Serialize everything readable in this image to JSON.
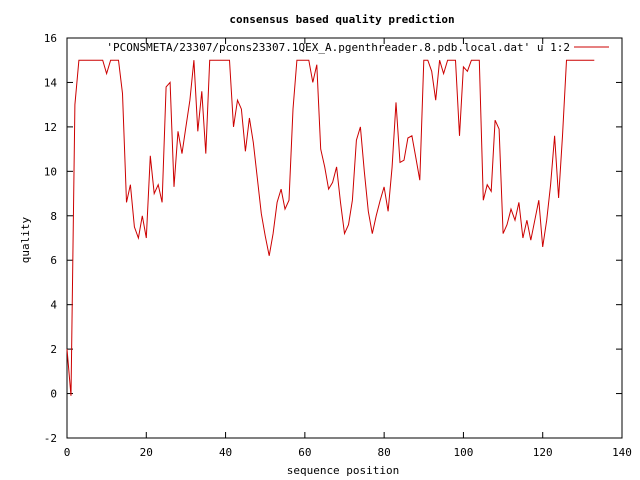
{
  "chart_data": {
    "type": "line",
    "title": "consensus based quality prediction",
    "xlabel": "sequence position",
    "ylabel": "quality",
    "xlim": [
      0,
      140
    ],
    "ylim": [
      -2,
      16
    ],
    "xticks": [
      "0",
      "20",
      "40",
      "60",
      "80",
      "100",
      "120",
      "140"
    ],
    "yticks": [
      "-2",
      "0",
      "2",
      "4",
      "6",
      "8",
      "10",
      "12",
      "14",
      "16"
    ],
    "grid": false,
    "legend_position": "top-right",
    "series": [
      {
        "name": "'PCONSMETA/23307/pcons23307.1QEX_A.pgenthreader.8.pdb.local.dat' u 1:2",
        "color": "#cc0000",
        "x": [
          0,
          1,
          2,
          3,
          4,
          5,
          6,
          7,
          8,
          9,
          10,
          11,
          12,
          13,
          14,
          15,
          16,
          17,
          18,
          19,
          20,
          21,
          22,
          23,
          24,
          25,
          26,
          27,
          28,
          29,
          30,
          31,
          32,
          33,
          34,
          35,
          36,
          37,
          38,
          39,
          40,
          41,
          42,
          43,
          44,
          45,
          46,
          47,
          48,
          49,
          50,
          51,
          52,
          53,
          54,
          55,
          56,
          57,
          58,
          59,
          60,
          61,
          62,
          63,
          64,
          65,
          66,
          67,
          68,
          69,
          70,
          71,
          72,
          73,
          74,
          75,
          76,
          77,
          78,
          79,
          80,
          81,
          82,
          83,
          84,
          85,
          86,
          87,
          88,
          89,
          90,
          91,
          92,
          93,
          94,
          95,
          96,
          97,
          98,
          99,
          100,
          101,
          102,
          103,
          104,
          105,
          106,
          107,
          108,
          109,
          110,
          111,
          112,
          113,
          114,
          115,
          116,
          117,
          118,
          119,
          120,
          121,
          122,
          123,
          124,
          125,
          126,
          127,
          128,
          129,
          130,
          131,
          132,
          133
        ],
        "y": [
          2.0,
          -0.1,
          13.0,
          15.0,
          15.0,
          15.0,
          15.0,
          15.0,
          15.0,
          15.0,
          14.4,
          15.0,
          15.0,
          15.0,
          13.5,
          8.6,
          9.4,
          7.5,
          7.0,
          8.0,
          7.0,
          10.7,
          9.0,
          9.4,
          8.6,
          13.8,
          14.0,
          9.3,
          11.8,
          10.8,
          12.0,
          13.2,
          15.0,
          11.8,
          13.6,
          10.8,
          15.0,
          15.0,
          15.0,
          15.0,
          15.0,
          15.0,
          12.0,
          13.2,
          12.8,
          10.9,
          12.4,
          11.3,
          9.7,
          8.1,
          7.1,
          6.2,
          7.2,
          8.6,
          9.2,
          8.3,
          8.7,
          12.8,
          15.0,
          15.0,
          15.0,
          15.0,
          14.0,
          14.8,
          11.0,
          10.2,
          9.2,
          9.5,
          10.2,
          8.6,
          7.2,
          7.6,
          8.7,
          11.4,
          12.0,
          10.0,
          8.2,
          7.2,
          8.0,
          8.7,
          9.3,
          8.2,
          10.2,
          13.1,
          10.4,
          10.5,
          11.5,
          11.6,
          10.6,
          9.6,
          15.0,
          15.0,
          14.5,
          13.2,
          15.0,
          14.4,
          15.0,
          15.0,
          15.0,
          11.6,
          14.7,
          14.5,
          15.0,
          15.0,
          15.0,
          8.7,
          9.4,
          9.1,
          12.3,
          11.9,
          7.2,
          7.6,
          8.3,
          7.8,
          8.6,
          7.0,
          7.8,
          6.9,
          7.8,
          8.7,
          6.6,
          7.8,
          9.4,
          11.6,
          8.8,
          11.6,
          15.0,
          15.0,
          15.0,
          15.0,
          15.0,
          15.0,
          15.0,
          15.0
        ]
      }
    ]
  }
}
